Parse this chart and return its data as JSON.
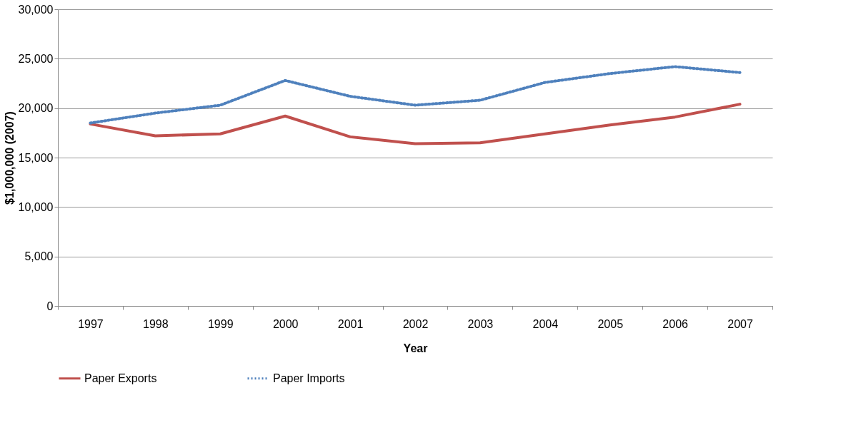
{
  "chart_data": {
    "type": "line",
    "xlabel": "Year",
    "ylabel": "$1,000,000 (2007)",
    "categories": [
      "1997",
      "1998",
      "1999",
      "2000",
      "2001",
      "2002",
      "2003",
      "2004",
      "2005",
      "2006",
      "2007"
    ],
    "series": [
      {
        "name": "Paper Exports",
        "color": "#c0504d",
        "line_style": "solid",
        "values": [
          18400,
          17200,
          17400,
          19200,
          17100,
          16400,
          16500,
          17400,
          18300,
          19100,
          20400
        ]
      },
      {
        "name": "Paper Imports",
        "color": "#4f81bd",
        "line_style": "dotted",
        "values": [
          18500,
          19500,
          20300,
          22800,
          21200,
          20300,
          20800,
          22600,
          23500,
          24200,
          23600
        ]
      }
    ],
    "ylim": [
      0,
      30000
    ],
    "yticks": [
      0,
      {
        "value": 5000,
        "label": "5,000"
      },
      {
        "value": 10000,
        "label": "10,000"
      },
      {
        "value": 15000,
        "label": "15,000"
      },
      {
        "value": 20000,
        "label": "20,000"
      },
      {
        "value": 25000,
        "label": "25,000"
      },
      {
        "value": 30000,
        "label": "30,000"
      }
    ],
    "grid": "y",
    "legend": "bottom",
    "marker": "none"
  }
}
